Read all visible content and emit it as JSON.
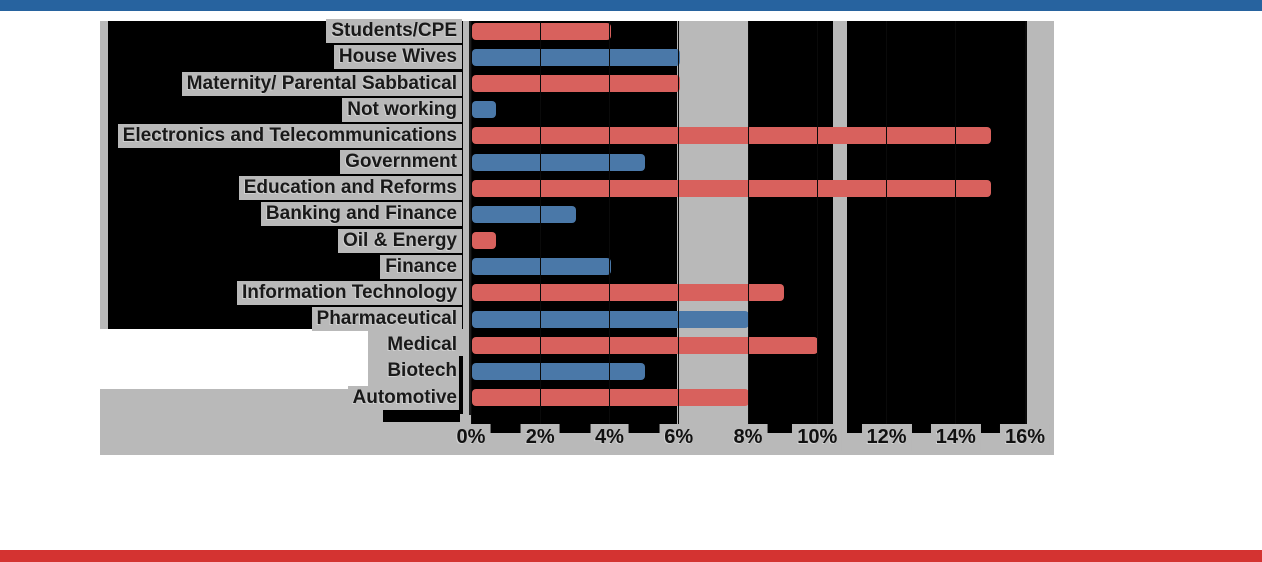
{
  "page": {
    "top_banner_color": "#27639f",
    "bottom_banner_color": "#d43331"
  },
  "chart_data": {
    "type": "bar",
    "orientation": "horizontal",
    "title": "",
    "categories": [
      "Students/CPE",
      "House Wives",
      "Maternity/ Parental Sabbatical",
      "Not working",
      "Electronics and Telecommunications",
      "Government",
      "Education and Reforms",
      "Banking and Finance",
      "Oil & Energy",
      "Finance",
      "Information Technology",
      "Pharmaceutical",
      "Medical",
      "Biotech",
      "Automotive"
    ],
    "values": [
      4,
      6,
      6,
      0.7,
      15,
      5,
      15,
      3,
      0.7,
      4,
      9,
      8,
      10,
      5,
      8
    ],
    "value_unit": "%",
    "x_tick_labels": [
      "0%",
      "2%",
      "4%",
      "6%",
      "8%",
      "10%",
      "12%",
      "14%",
      "16%"
    ],
    "xlim": [
      0,
      16
    ],
    "grid": "vertical gridlines every 2%",
    "legend": "none",
    "colors": {
      "bar_even_rows": "#d8615d",
      "bar_odd_rows": "#4a78a8",
      "plot_background": "#000000",
      "panel_background": "#b9b9b9",
      "label_text": "#191919"
    }
  }
}
